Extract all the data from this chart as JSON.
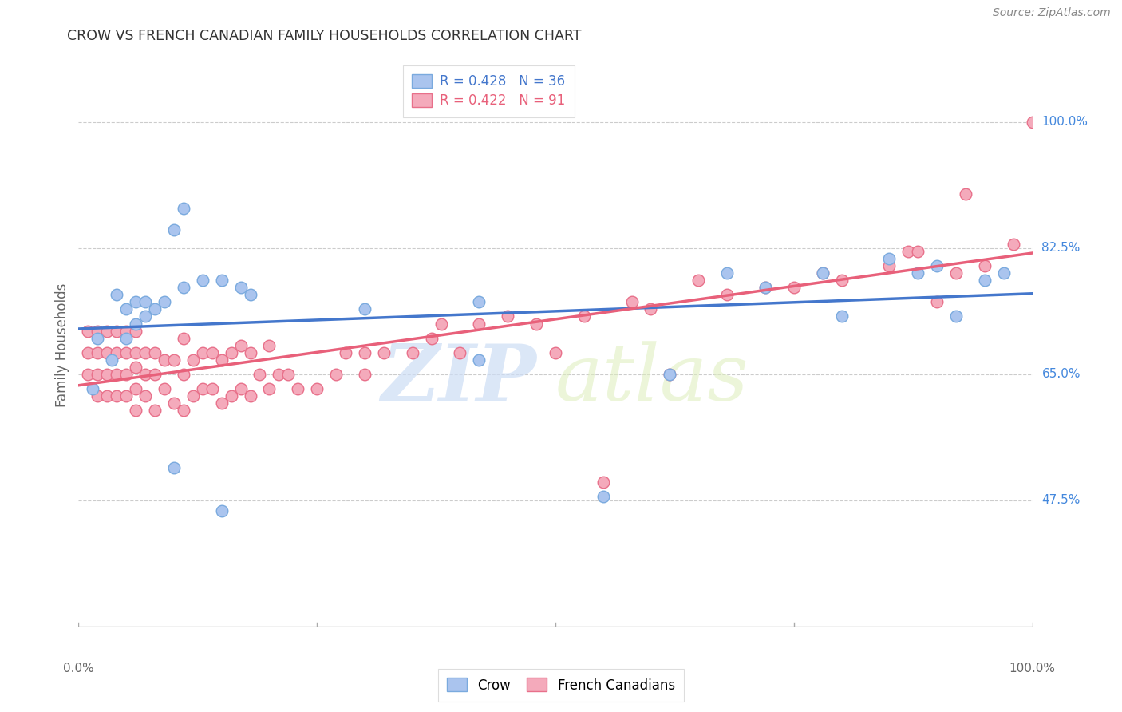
{
  "title": "CROW VS FRENCH CANADIAN FAMILY HOUSEHOLDS CORRELATION CHART",
  "source": "Source: ZipAtlas.com",
  "ylabel": "Family Households",
  "yticks": [
    47.5,
    65.0,
    82.5,
    100.0
  ],
  "ytick_labels": [
    "47.5%",
    "65.0%",
    "82.5%",
    "100.0%"
  ],
  "xlim": [
    0,
    100
  ],
  "ylim": [
    30,
    108
  ],
  "crow_color": "#aac4ee",
  "crow_edge_color": "#7aaade",
  "french_color": "#f4aabb",
  "french_edge_color": "#e8708a",
  "crow_line_color": "#4477cc",
  "french_line_color": "#e8607a",
  "tick_label_color": "#4488dd",
  "crow_R": 0.428,
  "crow_N": 36,
  "french_R": 0.422,
  "french_N": 91,
  "watermark_zip": "ZIP",
  "watermark_atlas": "atlas",
  "background_color": "#ffffff",
  "crow_x": [
    1.5,
    3.5,
    10,
    11,
    2,
    4,
    5,
    5,
    6,
    6,
    7,
    7,
    8,
    9,
    10,
    11,
    13,
    15,
    17,
    18,
    30,
    42,
    55,
    62,
    68,
    72,
    78,
    80,
    85,
    88,
    90,
    92,
    95,
    97,
    42,
    15
  ],
  "crow_y": [
    63,
    67,
    85,
    88,
    70,
    76,
    70,
    74,
    72,
    75,
    73,
    75,
    74,
    75,
    52,
    77,
    78,
    78,
    77,
    76,
    74,
    75,
    48,
    65,
    79,
    77,
    79,
    73,
    81,
    79,
    80,
    73,
    78,
    79,
    67,
    46
  ],
  "french_x": [
    1,
    1,
    1,
    2,
    2,
    2,
    2,
    3,
    3,
    3,
    3,
    4,
    4,
    4,
    4,
    5,
    5,
    5,
    5,
    6,
    6,
    6,
    6,
    6,
    7,
    7,
    7,
    8,
    8,
    8,
    9,
    9,
    10,
    10,
    11,
    11,
    11,
    12,
    12,
    13,
    13,
    14,
    14,
    15,
    15,
    16,
    16,
    17,
    17,
    18,
    18,
    19,
    20,
    20,
    21,
    22,
    23,
    25,
    27,
    28,
    30,
    30,
    32,
    35,
    37,
    38,
    40,
    42,
    45,
    48,
    50,
    53,
    55,
    58,
    60,
    62,
    65,
    68,
    72,
    75,
    78,
    80,
    85,
    87,
    88,
    90,
    92,
    93,
    95,
    98,
    100
  ],
  "french_y": [
    65,
    68,
    71,
    62,
    65,
    68,
    71,
    62,
    65,
    68,
    71,
    62,
    65,
    68,
    71,
    62,
    65,
    68,
    71,
    60,
    63,
    66,
    68,
    71,
    62,
    65,
    68,
    60,
    65,
    68,
    63,
    67,
    61,
    67,
    60,
    65,
    70,
    62,
    67,
    63,
    68,
    63,
    68,
    61,
    67,
    62,
    68,
    63,
    69,
    62,
    68,
    65,
    63,
    69,
    65,
    65,
    63,
    63,
    65,
    68,
    65,
    68,
    68,
    68,
    70,
    72,
    68,
    72,
    73,
    72,
    68,
    73,
    50,
    75,
    74,
    65,
    78,
    76,
    77,
    77,
    79,
    78,
    80,
    82,
    82,
    75,
    79,
    90,
    80,
    83,
    100
  ]
}
